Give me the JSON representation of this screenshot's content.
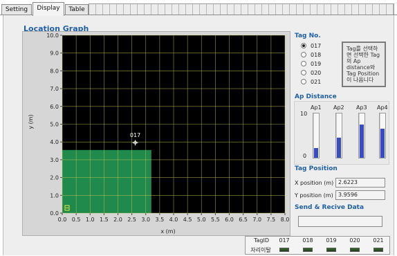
{
  "tabs": [
    {
      "label": "Setting",
      "active": false
    },
    {
      "label": "Display",
      "active": true
    },
    {
      "label": "Table",
      "active": false
    }
  ],
  "location_graph": {
    "title": "Location Graph",
    "chart_data": {
      "type": "scatter",
      "xlabel": "x (m)",
      "ylabel": "y (m)",
      "xlim": [
        0,
        8
      ],
      "ylim": [
        0,
        10
      ],
      "x_ticks": [
        "0.0",
        "0.5",
        "1.0",
        "1.5",
        "2.0",
        "2.5",
        "3.0",
        "3.5",
        "4.0",
        "4.5",
        "5.0",
        "5.5",
        "6.0",
        "6.5",
        "7.0",
        "7.5",
        "8.0"
      ],
      "y_ticks": [
        "0.0",
        "1.0",
        "2.0",
        "3.0",
        "4.0",
        "5.0",
        "6.0",
        "7.0",
        "8.0",
        "9.0",
        "10.0"
      ],
      "grid": true,
      "background": "#000000",
      "grid_color": "#c8c850",
      "region": {
        "x": [
          0,
          3.2
        ],
        "y": [
          0,
          3.55
        ],
        "color": "#1f8a4c"
      },
      "points": [
        {
          "label": "017",
          "x": 2.6223,
          "y": 3.9596,
          "color": "#ffffff"
        }
      ],
      "origin_marker_color": "#e8e84a"
    }
  },
  "tag_no": {
    "title": "Tag No.",
    "options": [
      "017",
      "018",
      "019",
      "020",
      "021"
    ],
    "selected": "017",
    "hint_text": "Tag를 선택하면 선택한 Tag의 Ap distance와 Tag Position이 나옵니다"
  },
  "ap_distance": {
    "title": "Ap Distance",
    "scale_max": "10",
    "scale_min": "0",
    "fill_color": "#3a4cc4",
    "aps": [
      {
        "label": "Ap1",
        "value": 2.2
      },
      {
        "label": "Ap2",
        "value": 4.6
      },
      {
        "label": "Ap3",
        "value": 7.5
      },
      {
        "label": "Ap4",
        "value": 6.6
      }
    ]
  },
  "tag_position": {
    "title": "Tag Position",
    "x_label": "X position (m)",
    "x_value": "2.6223",
    "y_label": "Y position (m)",
    "y_value": "3.9596"
  },
  "send_receive": {
    "title": "Send & Recive Data",
    "value": ""
  },
  "status_table": {
    "header_label": "TagID",
    "row_label": "자리이탈",
    "tag_ids": [
      "017",
      "018",
      "019",
      "020",
      "021"
    ]
  }
}
